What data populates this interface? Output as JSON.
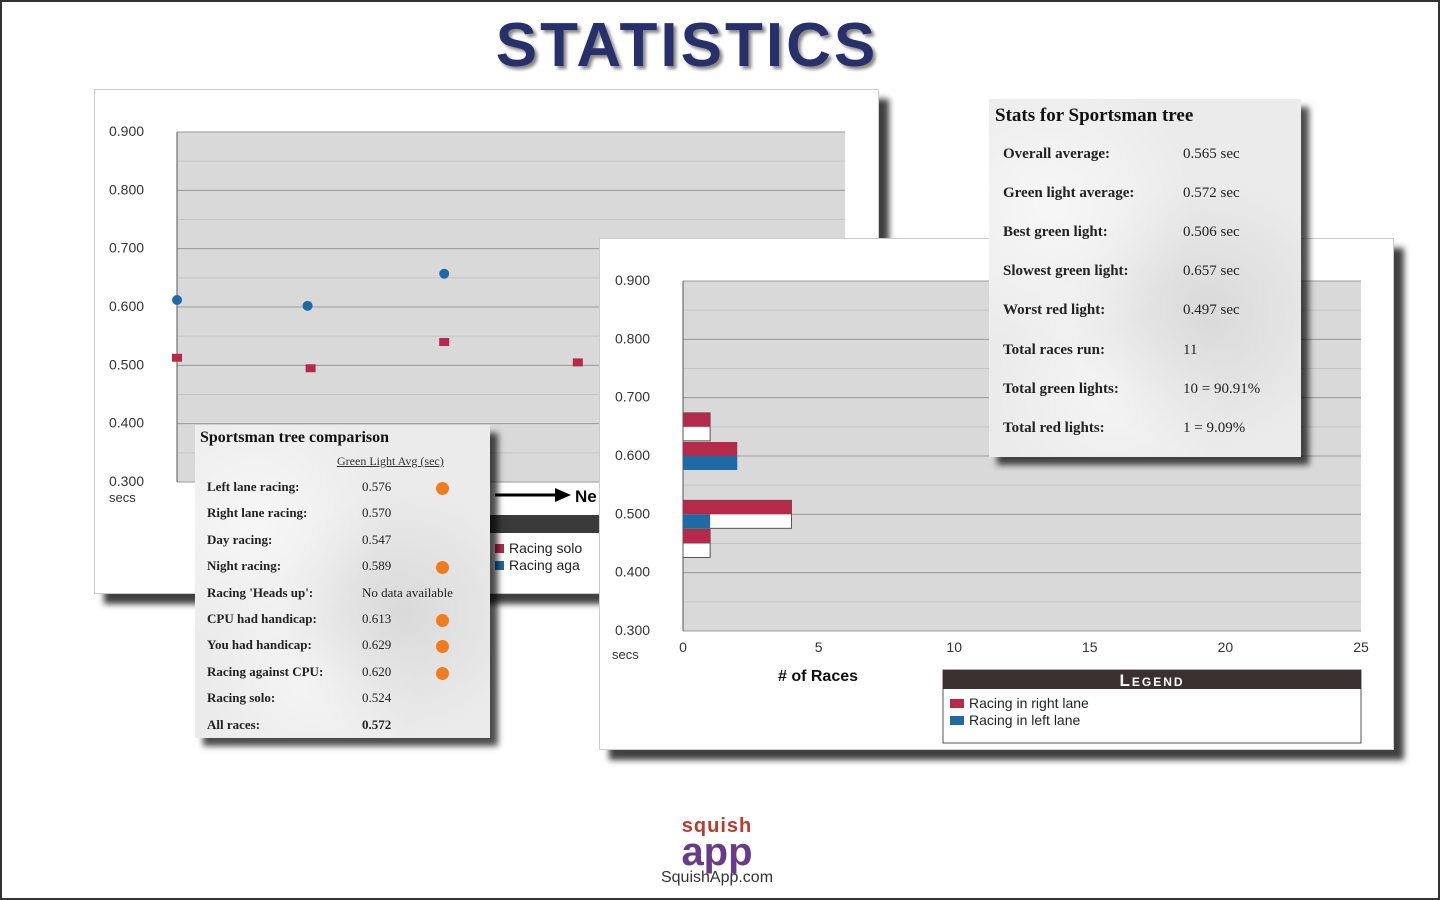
{
  "page": {
    "title": "STATISTICS"
  },
  "scatter_panel": {
    "y_ticks": [
      "0.900",
      "0.800",
      "0.700",
      "0.600",
      "0.500",
      "0.400",
      "0.300"
    ],
    "y_unit": "secs",
    "arrow_text": "Ne",
    "legend_items": [
      "Racing solo",
      "Racing aga"
    ],
    "series_colors": {
      "solo": "#b52a4a",
      "cpu": "#1f6aa5"
    }
  },
  "comparison": {
    "title": "Sportsman tree comparison",
    "column_header": "Green Light Avg (sec)",
    "rows": [
      {
        "label": "Left lane racing:",
        "value": "0.576",
        "dot": true
      },
      {
        "label": "Right lane racing:",
        "value": "0.570",
        "dot": false
      },
      {
        "label": "Day racing:",
        "value": "0.547",
        "dot": false
      },
      {
        "label": "Night racing:",
        "value": "0.589",
        "dot": true
      },
      {
        "label": "Racing 'Heads up':",
        "value": "No data available",
        "dot": false
      },
      {
        "label": "CPU had handicap:",
        "value": "0.613",
        "dot": true
      },
      {
        "label": "You had handicap:",
        "value": "0.629",
        "dot": true
      },
      {
        "label": "Racing against CPU:",
        "value": "0.620",
        "dot": true
      },
      {
        "label": "Racing solo:",
        "value": "0.524",
        "dot": false
      },
      {
        "label": "All races:",
        "value": "0.572",
        "dot": false
      }
    ]
  },
  "stats": {
    "title": "Stats for Sportsman tree",
    "rows": [
      {
        "label": "Overall average:",
        "value": "0.565 sec"
      },
      {
        "label": "Green light average:",
        "value": "0.572 sec"
      },
      {
        "label": "Best green light:",
        "value": "0.506 sec"
      },
      {
        "label": "Slowest green light:",
        "value": "0.657 sec"
      },
      {
        "label": "Worst red light:",
        "value": "0.497 sec"
      },
      {
        "label": "Total races run:",
        "value": "11"
      },
      {
        "label": "Total green lights:",
        "value": "10 = 90.91%"
      },
      {
        "label": "Total red lights:",
        "value": "1 = 9.09%"
      }
    ]
  },
  "histogram_panel": {
    "y_unit": "secs",
    "legend_title": "Legend",
    "footer": {
      "brand_top": "squish",
      "brand_main": "app",
      "url": "SquishApp.com"
    }
  },
  "chart_data": [
    {
      "type": "scatter",
      "title": "",
      "xlabel": "",
      "ylabel": "secs",
      "ylim": [
        0.3,
        0.9
      ],
      "yticks": [
        0.9,
        0.8,
        0.7,
        0.6,
        0.5,
        0.4,
        0.3
      ],
      "grid": true,
      "series": [
        {
          "name": "Racing solo",
          "color": "#b52a4a",
          "marker": "square",
          "points": [
            {
              "x": 1,
              "y": 0.513
            },
            {
              "x": 2,
              "y": 0.495
            },
            {
              "x": 3,
              "y": 0.54
            },
            {
              "x": 4,
              "y": 0.505
            }
          ]
        },
        {
          "name": "Racing aga",
          "color": "#1f6aa5",
          "marker": "circle",
          "points": [
            {
              "x": 1,
              "y": 0.612
            },
            {
              "x": 2,
              "y": 0.602
            },
            {
              "x": 3,
              "y": 0.657
            }
          ]
        }
      ],
      "xlim": [
        1,
        6
      ]
    },
    {
      "type": "bar",
      "orientation": "horizontal",
      "title": "",
      "xlabel": "# of Races",
      "ylabel": "secs",
      "xlim": [
        0,
        25
      ],
      "xticks": [
        0,
        5,
        10,
        15,
        20,
        25
      ],
      "ylim": [
        0.3,
        0.9
      ],
      "yticks": [
        0.9,
        0.8,
        0.7,
        0.6,
        0.5,
        0.4,
        0.3
      ],
      "legend": "bottom-right",
      "categories": [
        0.65,
        0.6,
        0.5,
        0.45
      ],
      "series": [
        {
          "name": "Racing in right lane",
          "color": "#b52a4a",
          "values": [
            1,
            2,
            4,
            1
          ]
        },
        {
          "name": "Racing in left lane",
          "color": "#1f6aa5",
          "values": [
            0,
            2,
            1,
            0
          ]
        }
      ],
      "outline_values": [
        1,
        0,
        4,
        1
      ]
    }
  ]
}
